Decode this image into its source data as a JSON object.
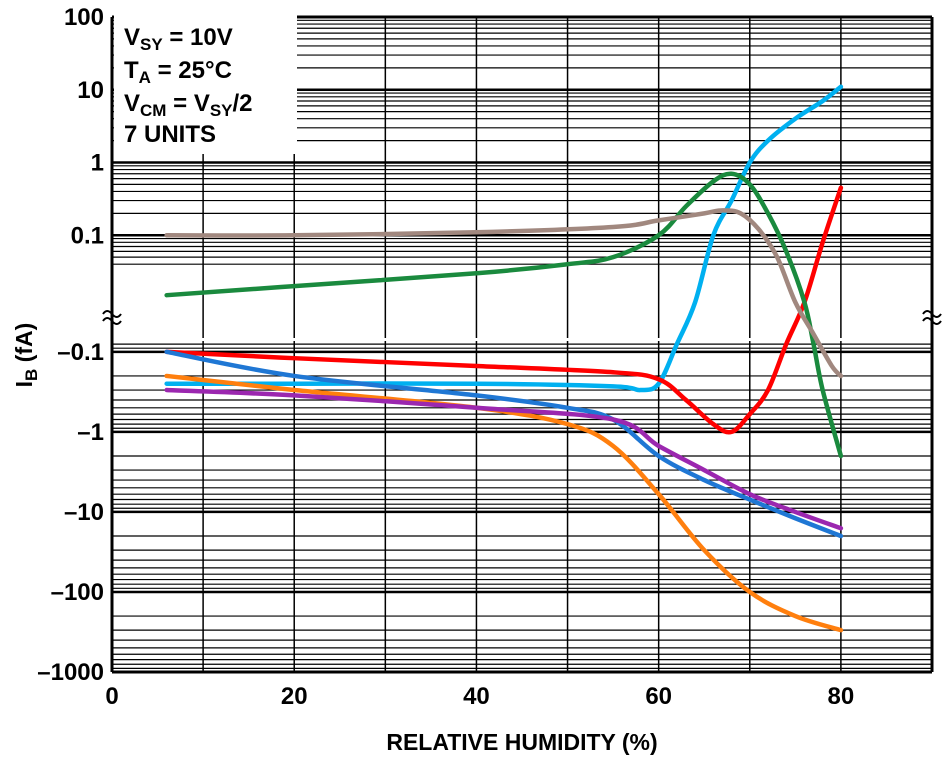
{
  "chart_data": {
    "type": "line",
    "xlabel": "RELATIVE HUMIDITY (%)",
    "ylabel": "I",
    "ylabel_sub": "B",
    "ylabel_unit": " (fA)",
    "xlim": [
      0,
      90
    ],
    "x_ticks": [
      {
        "value": 0,
        "label": "0"
      },
      {
        "value": 20,
        "label": "20"
      },
      {
        "value": 40,
        "label": "40"
      },
      {
        "value": 60,
        "label": "60"
      },
      {
        "value": 80,
        "label": "80"
      }
    ],
    "y_scale": "log (split: positive upper, negative lower)",
    "positive_ylim": [
      0.01,
      100
    ],
    "negative_ylim": [
      -0.03,
      -1000
    ],
    "y_ticks_positive": [
      {
        "value": 100,
        "label": "100"
      },
      {
        "value": 10,
        "label": "10"
      },
      {
        "value": 1,
        "label": "1"
      },
      {
        "value": 0.1,
        "label": "0.1"
      }
    ],
    "y_ticks_negative": [
      {
        "value": -0.1,
        "label": "–0.1"
      },
      {
        "value": -1,
        "label": "–1"
      },
      {
        "value": -10,
        "label": "–10"
      },
      {
        "value": -100,
        "label": "–100"
      },
      {
        "value": -1000,
        "label": "–1000"
      }
    ],
    "grid": true,
    "annotation": {
      "line1_main": "V",
      "line1_sub": "SY",
      "line1_rest": " = 10V",
      "line2_main": "T",
      "line2_sub": "A",
      "line2_rest": " = 25°C",
      "line3_main": "V",
      "line3_sub": "CM",
      "line3_mid": " = V",
      "line3_sub2": "SY",
      "line3_rest": "/2",
      "line4": "7 UNITS"
    },
    "series": [
      {
        "color": "#00b0f0",
        "values": [
          [
            6,
            -0.25
          ],
          [
            20,
            -0.25
          ],
          [
            40,
            -0.25
          ],
          [
            55,
            -0.27
          ],
          [
            58,
            -0.3
          ],
          [
            60,
            -0.25
          ],
          [
            62,
            -0.08
          ],
          [
            64,
            0.012
          ],
          [
            66,
            0.1
          ],
          [
            68,
            0.3
          ],
          [
            70,
            1
          ],
          [
            72,
            2
          ],
          [
            75,
            4
          ],
          [
            78,
            7
          ],
          [
            80,
            11
          ]
        ]
      },
      {
        "color": "#ff0000",
        "values": [
          [
            6,
            -0.1
          ],
          [
            20,
            -0.12
          ],
          [
            40,
            -0.15
          ],
          [
            55,
            -0.18
          ],
          [
            60,
            -0.22
          ],
          [
            63,
            -0.4
          ],
          [
            66,
            -0.8
          ],
          [
            68,
            -1
          ],
          [
            70,
            -0.6
          ],
          [
            72,
            -0.3
          ],
          [
            74,
            -0.08
          ],
          [
            76,
            0.012
          ],
          [
            78,
            0.08
          ],
          [
            80,
            0.45
          ]
        ]
      },
      {
        "color": "#1a8a3e",
        "values": [
          [
            6,
            0.015
          ],
          [
            20,
            0.02
          ],
          [
            40,
            0.03
          ],
          [
            50,
            0.04
          ],
          [
            55,
            0.05
          ],
          [
            60,
            0.1
          ],
          [
            63,
            0.25
          ],
          [
            66,
            0.55
          ],
          [
            68,
            0.7
          ],
          [
            70,
            0.5
          ],
          [
            72,
            0.2
          ],
          [
            74,
            0.06
          ],
          [
            76,
            0.012
          ],
          [
            77,
            -0.08
          ],
          [
            78,
            -0.3
          ],
          [
            80,
            -2
          ]
        ]
      },
      {
        "color": "#a1887f",
        "values": [
          [
            6,
            0.1
          ],
          [
            20,
            0.1
          ],
          [
            40,
            0.11
          ],
          [
            55,
            0.13
          ],
          [
            60,
            0.16
          ],
          [
            65,
            0.2
          ],
          [
            67,
            0.22
          ],
          [
            69,
            0.2
          ],
          [
            71,
            0.12
          ],
          [
            73,
            0.05
          ],
          [
            75,
            0.012
          ],
          [
            77,
            -0.06
          ],
          [
            79,
            -0.15
          ],
          [
            80,
            -0.2
          ]
        ]
      },
      {
        "color": "#ff7f0e",
        "values": [
          [
            6,
            -0.2
          ],
          [
            20,
            -0.3
          ],
          [
            40,
            -0.5
          ],
          [
            50,
            -0.8
          ],
          [
            55,
            -1.5
          ],
          [
            60,
            -6
          ],
          [
            65,
            -30
          ],
          [
            70,
            -100
          ],
          [
            75,
            -200
          ],
          [
            80,
            -300
          ]
        ]
      },
      {
        "color": "#1f77d4",
        "values": [
          [
            6,
            -0.1
          ],
          [
            20,
            -0.2
          ],
          [
            40,
            -0.35
          ],
          [
            50,
            -0.5
          ],
          [
            55,
            -0.7
          ],
          [
            60,
            -2
          ],
          [
            65,
            -4
          ],
          [
            70,
            -7
          ],
          [
            75,
            -12
          ],
          [
            80,
            -20
          ]
        ]
      },
      {
        "color": "#9b27af",
        "values": [
          [
            6,
            -0.3
          ],
          [
            20,
            -0.35
          ],
          [
            40,
            -0.5
          ],
          [
            55,
            -0.7
          ],
          [
            60,
            -1.5
          ],
          [
            65,
            -3
          ],
          [
            70,
            -6
          ],
          [
            75,
            -10
          ],
          [
            80,
            -16
          ]
        ]
      }
    ]
  }
}
